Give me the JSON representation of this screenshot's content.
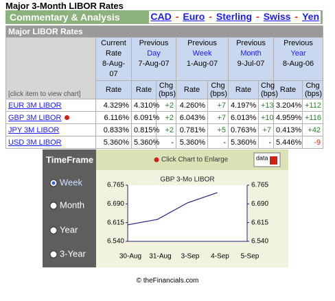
{
  "header": {
    "title": "Major 3-Month LIBOR Rates",
    "section": "Commentary & Analysis",
    "links": [
      "CAD",
      "Euro",
      "Sterling",
      "Swiss",
      "Yen"
    ],
    "separator": "-"
  },
  "table": {
    "title": "Major LIBOR Rates",
    "hint": "[click item to view chart]",
    "groups": [
      {
        "top": "Current",
        "period": "Rate",
        "date": "8-Aug-07"
      },
      {
        "top": "Previous",
        "period": "Day",
        "date": "7-Aug-07"
      },
      {
        "top": "Previous",
        "period": "Week",
        "date": "1-Aug-07"
      },
      {
        "top": "Previous",
        "period": "Month",
        "date": "9-Jul-07"
      },
      {
        "top": "Previous",
        "period": "Year",
        "date": "8-Aug-06"
      }
    ],
    "subheaders": [
      "Rate",
      "Rate",
      "Chg (bps)",
      "Rate",
      "Chg (bps)",
      "Rate",
      "Chg (bps)",
      "Rate",
      "Chg (bps)"
    ],
    "rows": [
      {
        "name": "EUR 3M LIBOR",
        "cells": [
          "4.329%",
          "4.310%",
          "+2",
          "4.260%",
          "+7",
          "4.197%",
          "+13",
          "3.204%",
          "+112"
        ]
      },
      {
        "name": "GBP 3M LIBOR",
        "cells": [
          "6.116%",
          "6.091%",
          "+2",
          "6.043%",
          "+7",
          "6.013%",
          "+10",
          "4.959%",
          "+116"
        ]
      },
      {
        "name": "JPY 3M LIBOR",
        "cells": [
          "0.833%",
          "0.815%",
          "+2",
          "0.781%",
          "+5",
          "0.763%",
          "+7",
          "0.413%",
          "+42"
        ]
      },
      {
        "name": "USD 3M LIBOR",
        "cells": [
          "5.360%",
          "5.360%",
          "-",
          "5.360%",
          "-",
          "5.360%",
          "-",
          "5.446%",
          "-9"
        ]
      }
    ]
  },
  "timeframe": {
    "title": "TimeFrame",
    "options": [
      "Week",
      "Month",
      "Year",
      "3-Year"
    ],
    "selected": 0,
    "enlarge": "Click Chart to Enlarge",
    "icon": "data"
  },
  "chart_data": {
    "type": "line",
    "title": "GBP 3-Mo LIBOR",
    "categories": [
      "30-Aug",
      "31-Aug",
      "3-Sep",
      "4-Sep",
      "5-Sep"
    ],
    "values": [
      6.606,
      6.628,
      6.694,
      6.735,
      null
    ],
    "color": "#1a237e",
    "ylim": [
      6.54,
      6.765
    ],
    "yticks": [
      {
        "value": 6.54,
        "label": "6.540"
      },
      {
        "value": 6.615,
        "label": "6.615"
      },
      {
        "value": 6.69,
        "label": "6.690"
      },
      {
        "value": 6.765,
        "label": "6.765"
      }
    ]
  },
  "footer": "© theFinancials.com"
}
